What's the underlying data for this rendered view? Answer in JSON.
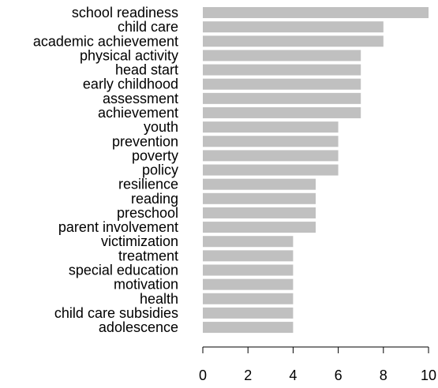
{
  "chart_data": {
    "type": "bar",
    "orientation": "horizontal",
    "title": "",
    "xlabel": "",
    "ylabel": "",
    "xlim": [
      0,
      10
    ],
    "x_ticks": [
      0,
      2,
      4,
      6,
      8,
      10
    ],
    "grid": false,
    "bar_color": "#c0c0c0",
    "categories": [
      "school readiness",
      "child care",
      "academic achievement",
      "physical activity",
      "head start",
      "early childhood",
      "assessment",
      "achievement",
      "youth",
      "prevention",
      "poverty",
      "policy",
      "resilience",
      "reading",
      "preschool",
      "parent involvement",
      "victimization",
      "treatment",
      "special education",
      "motivation",
      "health",
      "child care subsidies",
      "adolescence"
    ],
    "values": [
      10,
      8,
      8,
      7,
      7,
      7,
      7,
      7,
      6,
      6,
      6,
      6,
      5,
      5,
      5,
      5,
      4,
      4,
      4,
      4,
      4,
      4,
      4
    ]
  }
}
